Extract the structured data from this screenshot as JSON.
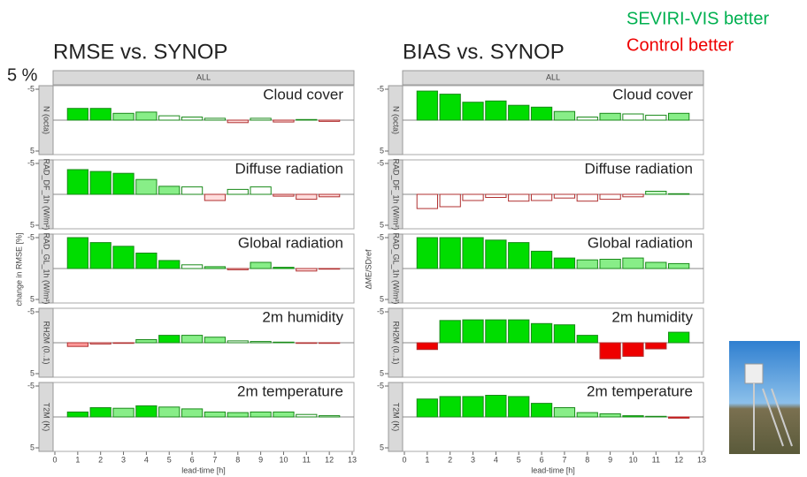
{
  "scale_note": "5 %",
  "legend": [
    {
      "name": "SEVIRI-VIS better",
      "color": "#00b050"
    },
    {
      "name": "Control better",
      "color": "#ee0000"
    }
  ],
  "chart_data": [
    {
      "type": "bar",
      "title": "RMSE vs. SYNOP",
      "x_label": "lead-time [h]",
      "y_label": "change in RMSE [%]",
      "strip": "ALL",
      "x": [
        1,
        2,
        3,
        4,
        5,
        6,
        7,
        8,
        9,
        10,
        11,
        12
      ],
      "xlim": [
        0,
        13
      ],
      "xticks": [
        0,
        1,
        2,
        3,
        4,
        5,
        6,
        7,
        8,
        9,
        10,
        11,
        12,
        13
      ],
      "ylim": [
        -5,
        5
      ],
      "yticks": [
        -5,
        5
      ],
      "y_reversed": true,
      "panels": [
        {
          "facet": "N (octa)",
          "title": "Cloud cover",
          "values": [
            -1.9,
            -1.9,
            -1.1,
            -1.3,
            -0.7,
            -0.5,
            -0.3,
            0.4,
            -0.3,
            0.3,
            -0.1,
            0.2
          ],
          "colors": [
            "#00dd00",
            "#00dd00",
            "#88ee88",
            "#88ee88",
            "#ffffff",
            "#ffffff",
            "#ffffff",
            "#ffdddd",
            "#ffffff",
            "#ffdddd",
            "#00dd00",
            "#ffdddd"
          ]
        },
        {
          "facet": "RAD_DF_1h (W/m²)",
          "title": "Diffuse radiation",
          "values": [
            -4.0,
            -3.7,
            -3.4,
            -2.4,
            -1.3,
            -1.2,
            1.0,
            -0.8,
            -1.2,
            0.3,
            0.8,
            0.4
          ],
          "colors": [
            "#00dd00",
            "#00dd00",
            "#00dd00",
            "#88ee88",
            "#88ee88",
            "#ffffff",
            "#ffdddd",
            "#ffffff",
            "#ffffff",
            "#ffdddd",
            "#ffdddd",
            "#ffdddd"
          ]
        },
        {
          "facet": "RAD_GL_1h (W/m²)",
          "title": "Global radiation",
          "values": [
            -5.0,
            -4.2,
            -3.6,
            -2.5,
            -1.3,
            -0.6,
            -0.3,
            0.2,
            -1.0,
            -0.2,
            0.4,
            0.1
          ],
          "colors": [
            "#00dd00",
            "#00dd00",
            "#00dd00",
            "#00dd00",
            "#00dd00",
            "#ffffff",
            "#88ee88",
            "#ffdddd",
            "#88ee88",
            "#00dd00",
            "#ffdddd",
            "#ffdddd"
          ]
        },
        {
          "facet": "RH2M (0..1)",
          "title": "2m humidity",
          "values": [
            0.6,
            0.2,
            0.1,
            -0.5,
            -1.2,
            -1.2,
            -0.9,
            -0.3,
            -0.2,
            -0.1,
            0.1,
            0.1
          ],
          "colors": [
            "#ff9999",
            "#ffdddd",
            "#ffdddd",
            "#88ee88",
            "#00dd00",
            "#88ee88",
            "#88ee88",
            "#ffffff",
            "#ffffff",
            "#00dd00",
            "#ffdddd",
            "#ffdddd"
          ]
        },
        {
          "facet": "T2M (K)",
          "title": "2m temperature",
          "values": [
            -0.8,
            -1.5,
            -1.4,
            -1.8,
            -1.6,
            -1.3,
            -0.8,
            -0.7,
            -0.8,
            -0.8,
            -0.4,
            -0.2
          ],
          "colors": [
            "#00dd00",
            "#00dd00",
            "#88ee88",
            "#00dd00",
            "#88ee88",
            "#88ee88",
            "#88ee88",
            "#88ee88",
            "#88ee88",
            "#88ee88",
            "#ffffff",
            "#ffffff"
          ]
        }
      ]
    },
    {
      "type": "bar",
      "title": "BIAS vs. SYNOP",
      "x_label": "lead-time [h]",
      "y_label": "ΔME/SDref",
      "strip": "ALL",
      "x": [
        1,
        2,
        3,
        4,
        5,
        6,
        7,
        8,
        9,
        10,
        11,
        12
      ],
      "xlim": [
        0,
        13
      ],
      "xticks": [
        0,
        1,
        2,
        3,
        4,
        5,
        6,
        7,
        8,
        9,
        10,
        11,
        12,
        13
      ],
      "ylim": [
        -5,
        5
      ],
      "yticks": [
        -5,
        5
      ],
      "y_reversed": true,
      "panels": [
        {
          "facet": "N (octa)",
          "title": "Cloud cover",
          "values": [
            -4.7,
            -4.2,
            -2.9,
            -3.1,
            -2.4,
            -2.1,
            -1.4,
            -0.5,
            -1.1,
            -1.0,
            -0.8,
            -1.1
          ],
          "colors": [
            "#00dd00",
            "#00dd00",
            "#00dd00",
            "#00dd00",
            "#00dd00",
            "#00dd00",
            "#88ee88",
            "#ffffff",
            "#88ee88",
            "#ffffff",
            "#ffffff",
            "#88ee88"
          ]
        },
        {
          "facet": "RAD_DF_1h (W/m²)",
          "title": "Diffuse radiation",
          "values": [
            2.3,
            2.0,
            1.0,
            0.5,
            1.1,
            1.0,
            0.6,
            1.1,
            0.8,
            0.4,
            -0.5,
            -0.1
          ],
          "colors": [
            "#ffffff",
            "#ffffff",
            "#ffffff",
            "#ffffff",
            "#ffffff",
            "#ffffff",
            "#ffffff",
            "#ffffff",
            "#ffffff",
            "#ffffff",
            "#ccffcc",
            "#00dd00"
          ]
        },
        {
          "facet": "RAD_GL_1h (W/m²)",
          "title": "Global radiation",
          "values": [
            -5.0,
            -5.0,
            -5.0,
            -4.6,
            -4.2,
            -2.8,
            -1.7,
            -1.4,
            -1.5,
            -1.7,
            -1.0,
            -0.8
          ],
          "colors": [
            "#00dd00",
            "#00dd00",
            "#00dd00",
            "#00dd00",
            "#00dd00",
            "#00dd00",
            "#00dd00",
            "#88ee88",
            "#88ee88",
            "#88ee88",
            "#88ee88",
            "#88ee88"
          ]
        },
        {
          "facet": "RH2M (0..1)",
          "title": "2m humidity",
          "values": [
            1.1,
            -3.6,
            -3.7,
            -3.7,
            -3.7,
            -3.1,
            -2.9,
            -1.2,
            2.6,
            2.2,
            1.0,
            -1.7
          ],
          "colors": [
            "#ee0000",
            "#00dd00",
            "#00dd00",
            "#00dd00",
            "#00dd00",
            "#00dd00",
            "#00dd00",
            "#00dd00",
            "#ee0000",
            "#ee0000",
            "#ee0000",
            "#00dd00"
          ]
        },
        {
          "facet": "T2M (K)",
          "title": "2m temperature",
          "values": [
            -2.9,
            -3.3,
            -3.3,
            -3.5,
            -3.3,
            -2.2,
            -1.5,
            -0.7,
            -0.5,
            -0.2,
            -0.1,
            0.2
          ],
          "colors": [
            "#00dd00",
            "#00dd00",
            "#00dd00",
            "#00dd00",
            "#00dd00",
            "#00dd00",
            "#88ee88",
            "#88ee88",
            "#88ee88",
            "#00dd00",
            "#00dd00",
            "#ee0000"
          ]
        }
      ]
    }
  ]
}
